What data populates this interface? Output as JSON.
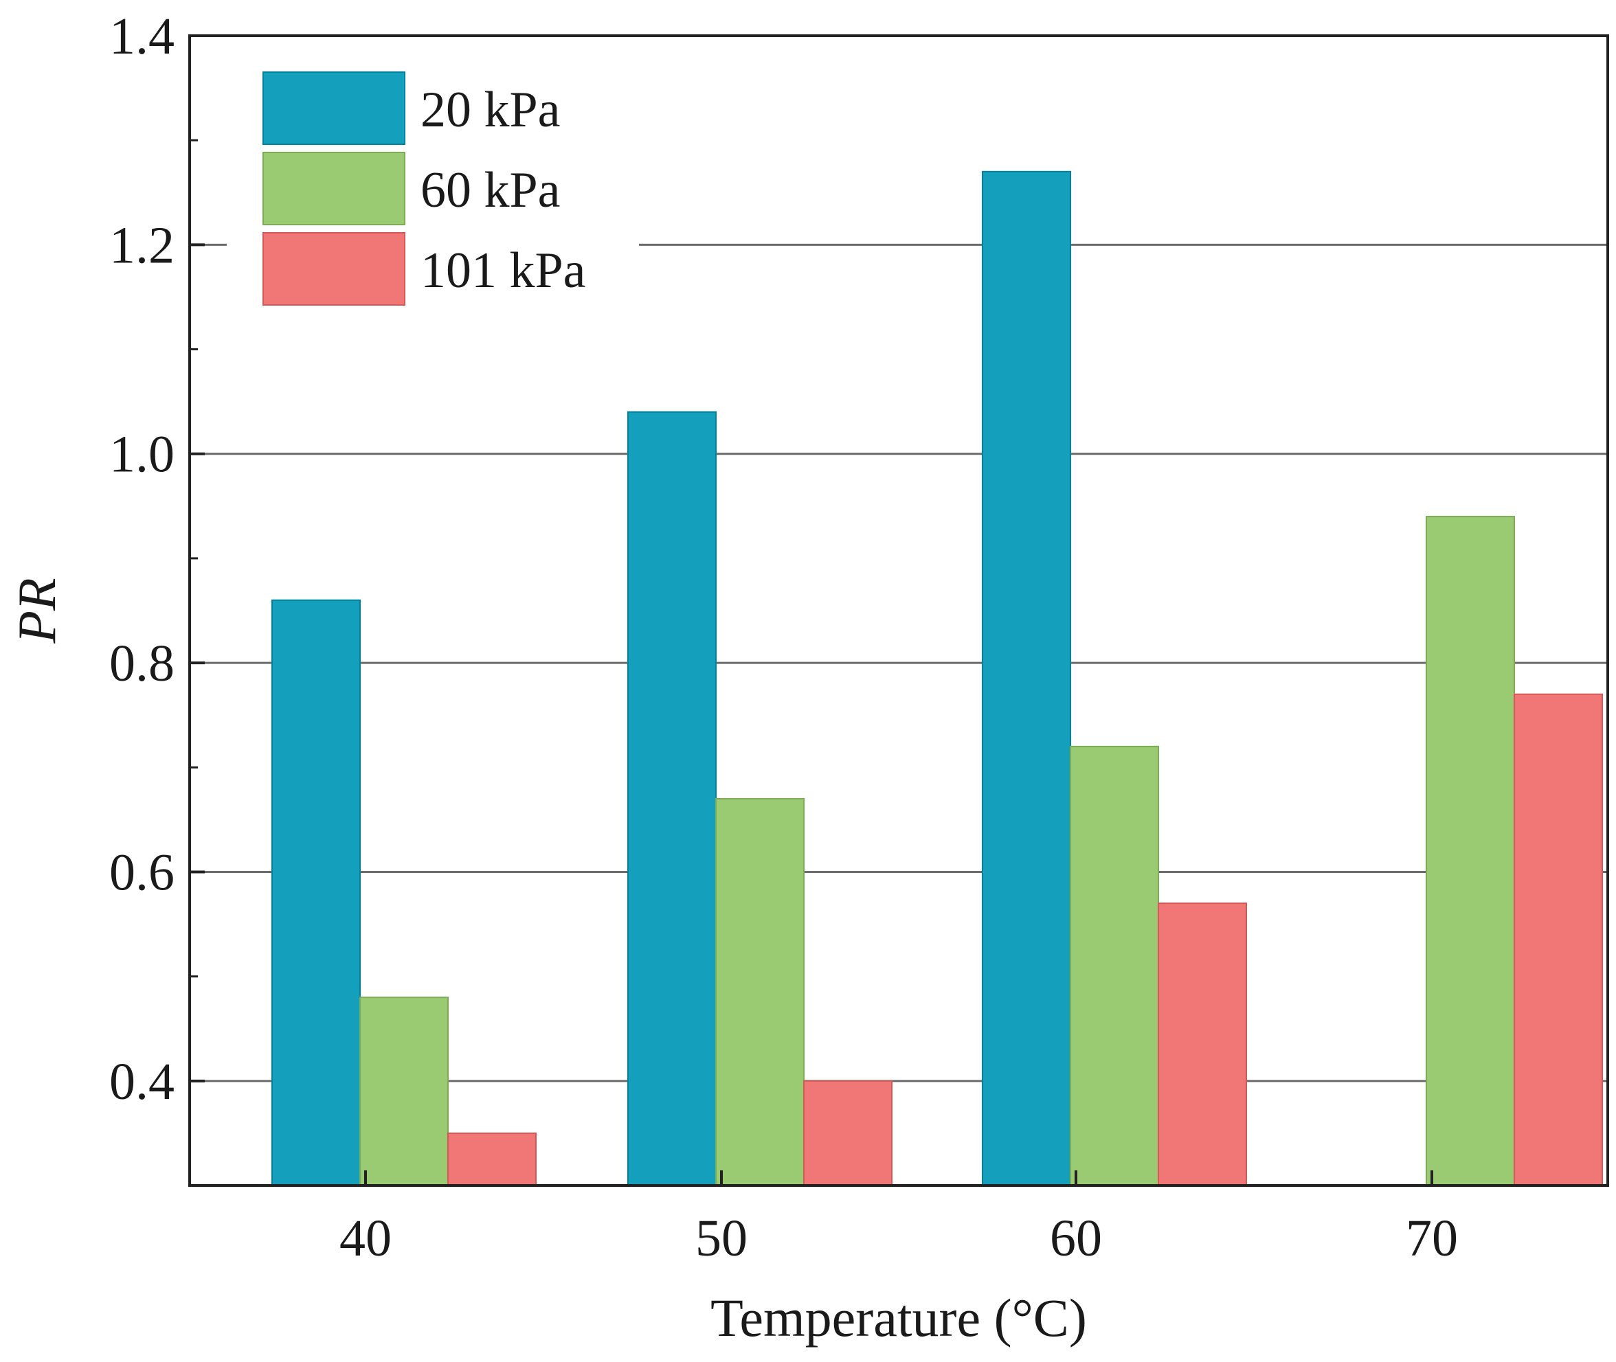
{
  "chart_data": {
    "type": "bar",
    "title": "",
    "xlabel": "Temperature (°C)",
    "ylabel": "PR",
    "categories": [
      "40",
      "50",
      "60",
      "70"
    ],
    "series": [
      {
        "name": "20 kPa",
        "color": "#14a0bd",
        "values": [
          0.86,
          1.04,
          1.27,
          null
        ]
      },
      {
        "name": "60 kPa",
        "color": "#9acb72",
        "values": [
          0.48,
          0.67,
          0.72,
          0.94
        ]
      },
      {
        "name": "101 kPa",
        "color": "#f17676",
        "values": [
          0.35,
          0.4,
          0.57,
          0.77
        ]
      }
    ],
    "ylim": [
      0.3,
      1.4
    ],
    "yticks": [
      "0.4",
      "0.6",
      "0.8",
      "1.0",
      "1.2",
      "1.4"
    ],
    "grid": true,
    "legend_position": "top-left"
  }
}
